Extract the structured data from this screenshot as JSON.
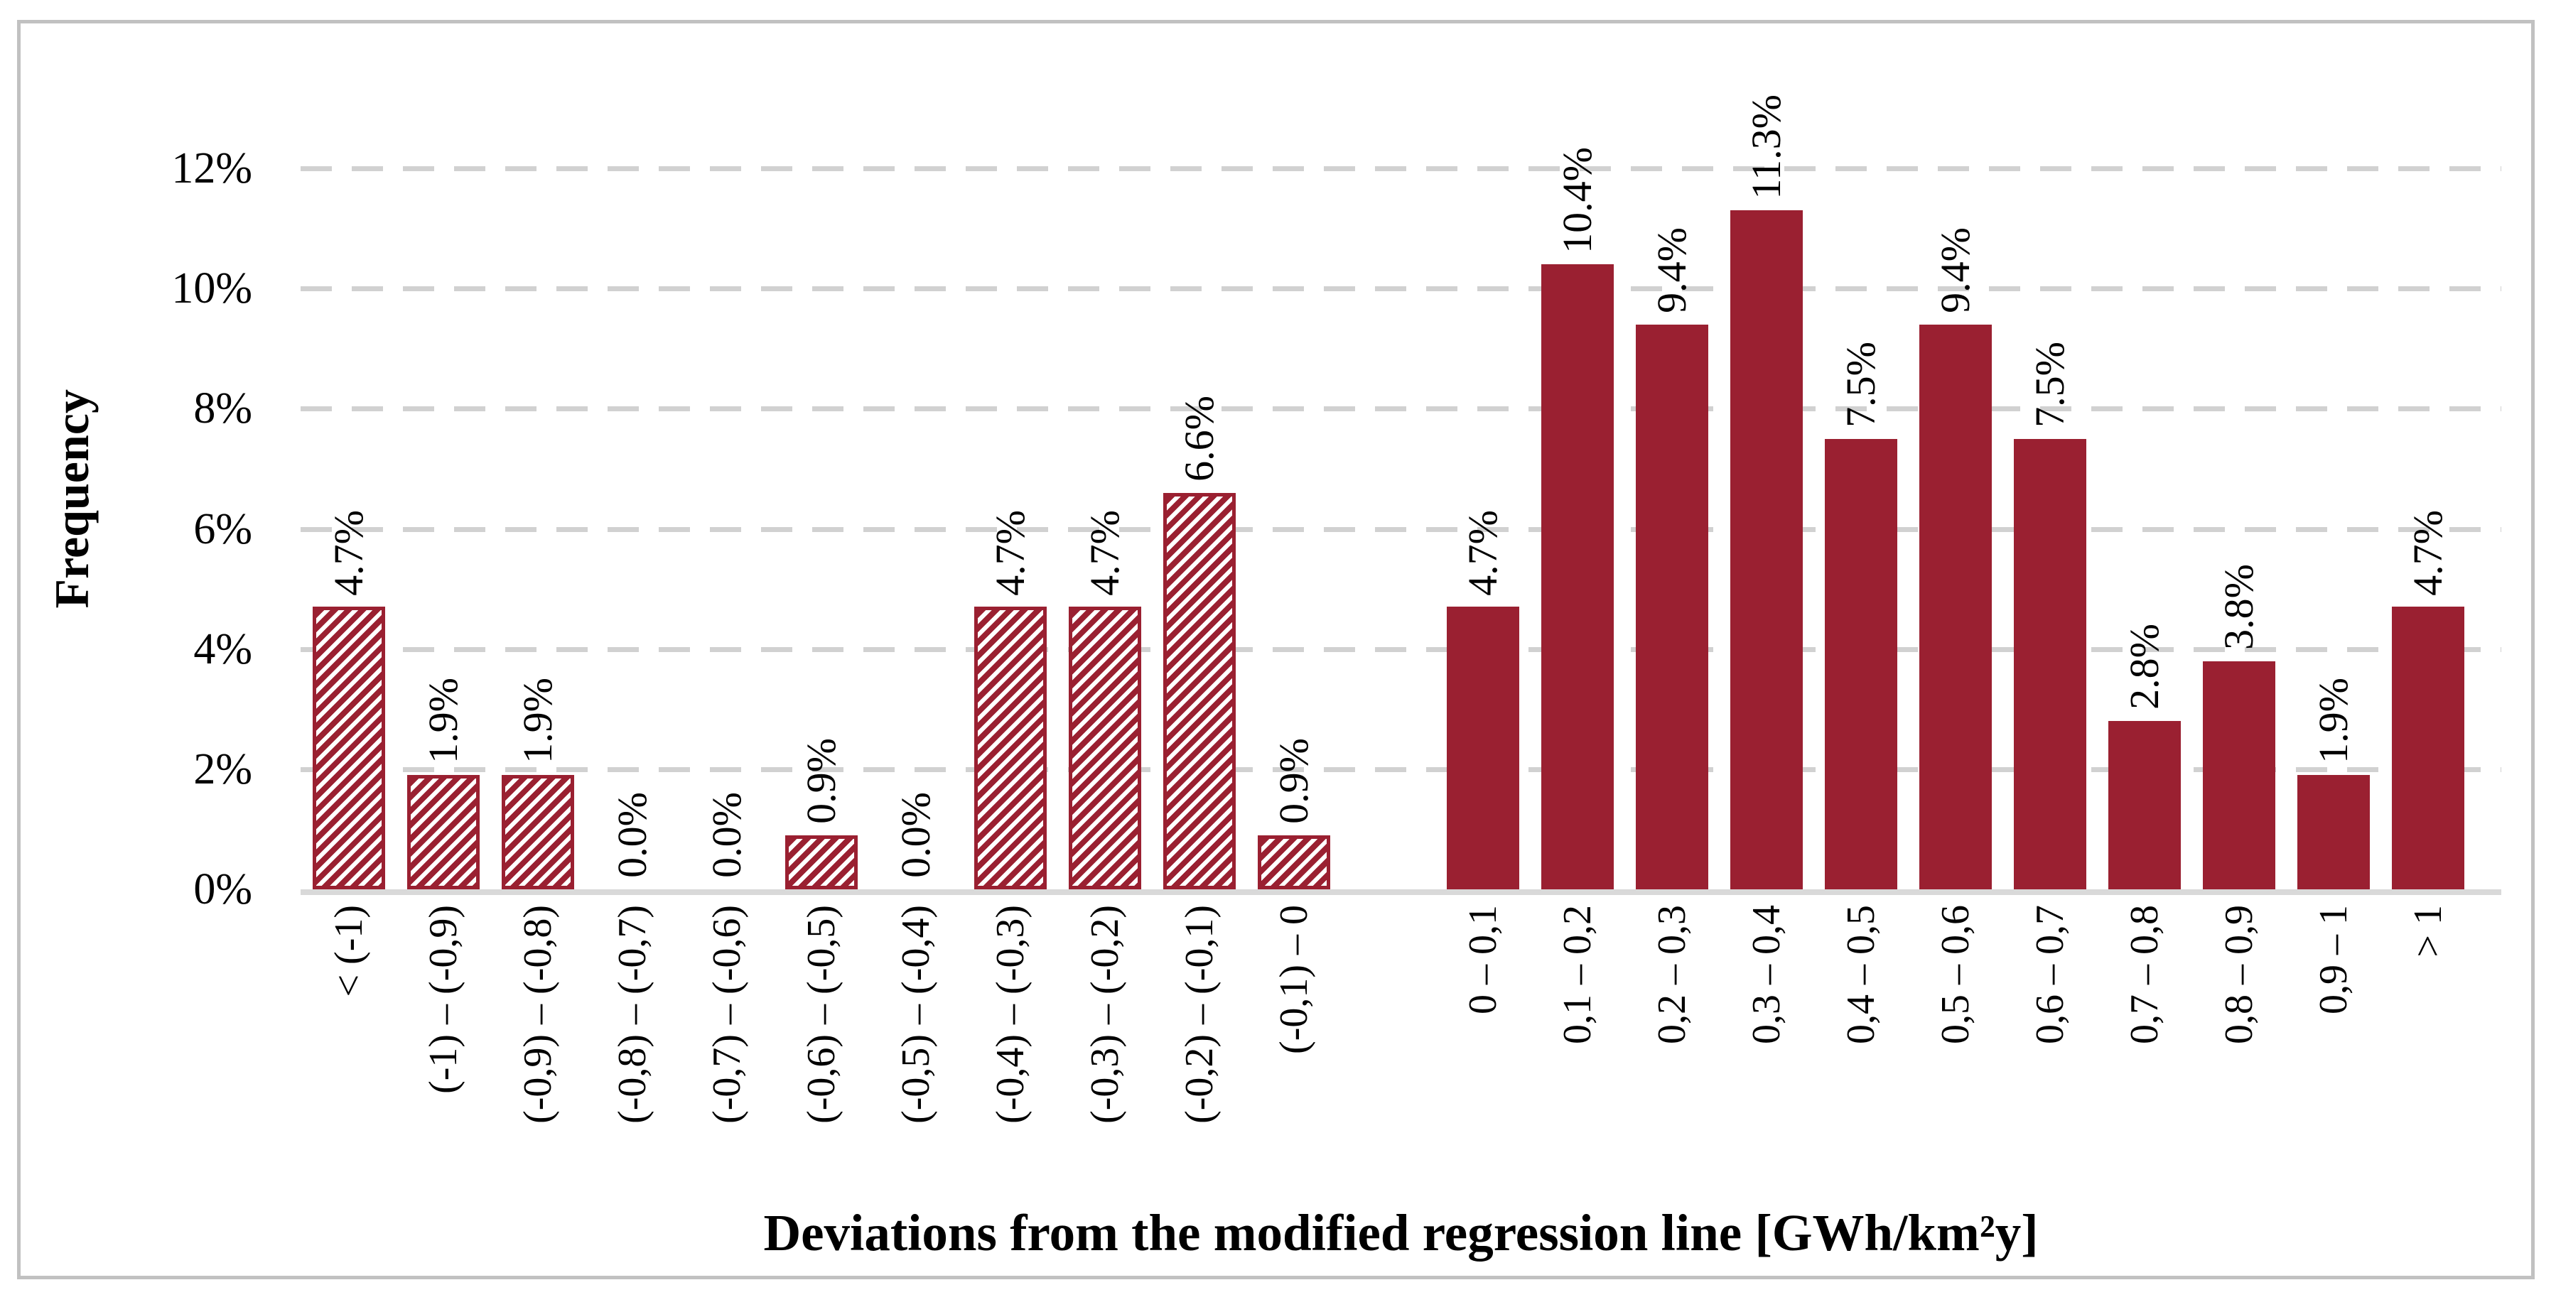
{
  "figure": {
    "colors": {
      "bar": "#9A2031",
      "gridline": "#D1D1D1",
      "axis_line": "#D9D9D9",
      "frame_border": "#C1C1C1",
      "text": "#000000"
    },
    "y_axis": {
      "title": "Frequency",
      "tick_labels": [
        "0%",
        "2%",
        "4%",
        "6%",
        "8%",
        "10%",
        "12%"
      ],
      "tick_step_percent": 2,
      "max_percent": 12,
      "gridline_style": "dashed"
    },
    "x_axis": {
      "title": "Deviations from the modified regression line [GWh/km²y]"
    },
    "chart_data": {
      "type": "bar",
      "title": "",
      "xlabel": "Deviations from the modified regression line [GWh/km²y]",
      "ylabel": "Frequency",
      "ylim": [
        0,
        12
      ],
      "y_unit": "%",
      "grid": "horizontal dashed",
      "legend": "none",
      "series": [
        {
          "name": "negative-deviations",
          "style": "hatched-diagonal",
          "categories": [
            "< (-1)",
            "(-1) – (-0,9)",
            "(-0,9) – (-0,8)",
            "(-0,8) – (-0,7)",
            "(-0,7) – (-0,6)",
            "(-0,6) – (-0,5)",
            "(-0,5) – (-0,4)",
            "(-0,4) – (-0,3)",
            "(-0,3) – (-0,2)",
            "(-0,2) – (-0,1)",
            "(-0,1) – 0"
          ],
          "values": [
            4.7,
            1.9,
            1.9,
            0.0,
            0.0,
            0.9,
            0.0,
            4.7,
            4.7,
            6.6,
            0.9
          ],
          "data_labels": [
            "4.7%",
            "1.9%",
            "1.9%",
            "0.0%",
            "0.0%",
            "0.9%",
            "0.0%",
            "4.7%",
            "4.7%",
            "6.6%",
            "0.9%"
          ]
        },
        {
          "name": "positive-deviations",
          "style": "solid",
          "categories": [
            "0 – 0,1",
            "0,1 – 0,2",
            "0,2 – 0,3",
            "0,3 – 0,4",
            "0,4 – 0,5",
            "0,5 – 0,6",
            "0,6 – 0,7",
            "0,7 – 0,8",
            "0,8 – 0,9",
            "0,9 – 1",
            "> 1"
          ],
          "values": [
            4.7,
            10.4,
            9.4,
            11.3,
            7.5,
            9.4,
            7.5,
            2.8,
            3.8,
            1.9,
            4.7
          ],
          "data_labels": [
            "4.7%",
            "10.4%",
            "9.4%",
            "11.3%",
            "7.5%",
            "9.4%",
            "7.5%",
            "2.8%",
            "3.8%",
            "1.9%",
            "4.7%"
          ]
        }
      ]
    }
  }
}
